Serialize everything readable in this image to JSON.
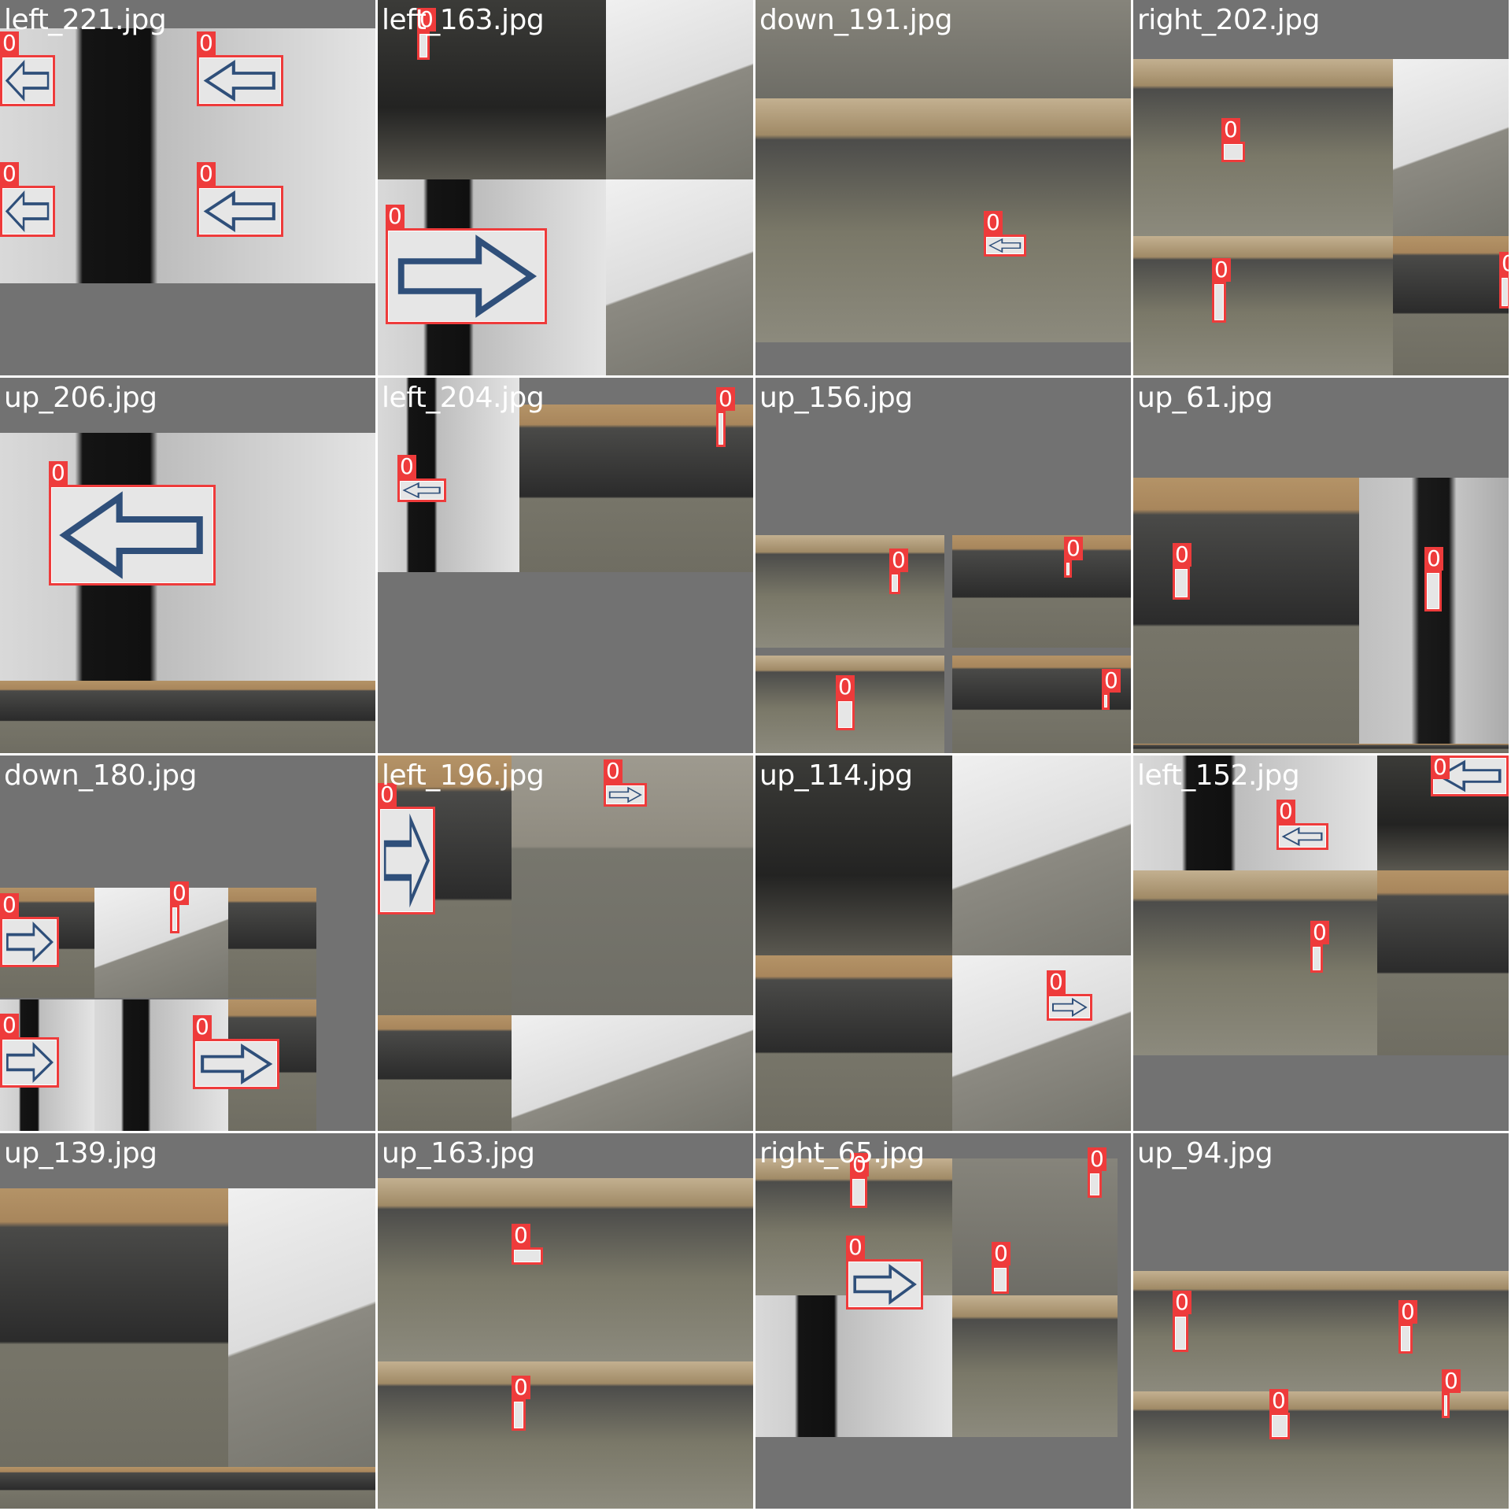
{
  "grid": {
    "tiles": [
      {
        "label": "left_221.jpg"
      },
      {
        "label": "left_163.jpg"
      },
      {
        "label": "down_191.jpg"
      },
      {
        "label": "right_202.jpg"
      },
      {
        "label": "up_206.jpg"
      },
      {
        "label": "left_204.jpg"
      },
      {
        "label": "up_156.jpg"
      },
      {
        "label": "up_61.jpg"
      },
      {
        "label": "down_180.jpg"
      },
      {
        "label": "left_196.jpg"
      },
      {
        "label": "up_114.jpg"
      },
      {
        "label": "left_152.jpg"
      },
      {
        "label": "up_139.jpg"
      },
      {
        "label": "up_163.jpg"
      },
      {
        "label": "right_65.jpg"
      },
      {
        "label": "up_94.jpg"
      }
    ]
  },
  "detection_class_label": "0",
  "colors": {
    "tile_background": "#727272",
    "bbox": "#ee3b3b",
    "label_text": "#ffffff"
  }
}
